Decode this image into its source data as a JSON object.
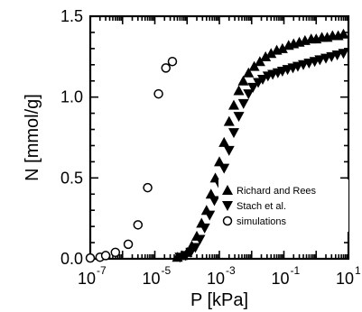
{
  "chart_data": {
    "type": "scatter",
    "xlabel": "P [kPa]",
    "ylabel": "N [mmol/g]",
    "xscale": "log",
    "xlim": [
      1e-07,
      10
    ],
    "ylim": [
      0,
      1.5
    ],
    "x_tick_labels": [
      "10",
      "10",
      "10",
      "10",
      "10"
    ],
    "x_tick_exponents": [
      "-7",
      "-5",
      "-3",
      "-1",
      "1"
    ],
    "y_tick_labels": [
      "0.0",
      "0.5",
      "1.0",
      "1.5"
    ],
    "y_ticks": [
      0,
      0.5,
      1.0,
      1.5
    ],
    "legend_position": "lower-right",
    "series": [
      {
        "name": "Richard and Rees",
        "marker": "triangle-up",
        "color": "#000000",
        "points": [
          [
            5e-05,
            0.01
          ],
          [
            7e-05,
            0.02
          ],
          [
            0.0001,
            0.04
          ],
          [
            0.00014,
            0.08
          ],
          [
            0.0002,
            0.14
          ],
          [
            0.00028,
            0.22
          ],
          [
            0.0004,
            0.3
          ],
          [
            0.00055,
            0.4
          ],
          [
            0.00075,
            0.5
          ],
          [
            0.001,
            0.6
          ],
          [
            0.0014,
            0.72
          ],
          [
            0.002,
            0.85
          ],
          [
            0.0028,
            0.95
          ],
          [
            0.004,
            1.04
          ],
          [
            0.0055,
            1.1
          ],
          [
            0.008,
            1.15
          ],
          [
            0.012,
            1.19
          ],
          [
            0.018,
            1.22
          ],
          [
            0.027,
            1.25
          ],
          [
            0.04,
            1.27
          ],
          [
            0.06,
            1.29
          ],
          [
            0.09,
            1.3
          ],
          [
            0.14,
            1.32
          ],
          [
            0.2,
            1.33
          ],
          [
            0.3,
            1.34
          ],
          [
            0.45,
            1.35
          ],
          [
            0.7,
            1.36
          ],
          [
            1.0,
            1.36
          ],
          [
            1.5,
            1.37
          ],
          [
            2.2,
            1.37
          ],
          [
            3.2,
            1.38
          ],
          [
            4.8,
            1.38
          ],
          [
            7.0,
            1.39
          ]
        ]
      },
      {
        "name": "Stach et al.",
        "marker": "triangle-down",
        "color": "#000000",
        "points": [
          [
            6e-05,
            0.01
          ],
          [
            9e-05,
            0.02
          ],
          [
            0.00013,
            0.04
          ],
          [
            0.00018,
            0.07
          ],
          [
            0.00025,
            0.12
          ],
          [
            0.00035,
            0.19
          ],
          [
            0.0005,
            0.27
          ],
          [
            0.0007,
            0.36
          ],
          [
            0.001,
            0.46
          ],
          [
            0.0014,
            0.56
          ],
          [
            0.002,
            0.67
          ],
          [
            0.0028,
            0.78
          ],
          [
            0.004,
            0.88
          ],
          [
            0.0056,
            0.96
          ],
          [
            0.008,
            1.02
          ],
          [
            0.011,
            1.06
          ],
          [
            0.016,
            1.09
          ],
          [
            0.022,
            1.11
          ],
          [
            0.032,
            1.13
          ],
          [
            0.045,
            1.14
          ],
          [
            0.065,
            1.15
          ],
          [
            0.09,
            1.16
          ],
          [
            0.13,
            1.17
          ],
          [
            0.19,
            1.18
          ],
          [
            0.27,
            1.19
          ],
          [
            0.4,
            1.2
          ],
          [
            0.6,
            1.21
          ],
          [
            0.9,
            1.22
          ],
          [
            1.3,
            1.23
          ],
          [
            2.0,
            1.24
          ],
          [
            3.0,
            1.25
          ],
          [
            4.5,
            1.26
          ],
          [
            7.0,
            1.27
          ]
        ]
      },
      {
        "name": "simulations",
        "marker": "circle-open",
        "color": "#000000",
        "points": [
          [
            1e-07,
            0.005
          ],
          [
            2e-07,
            0.01
          ],
          [
            3e-07,
            0.02
          ],
          [
            6e-07,
            0.04
          ],
          [
            1.5e-06,
            0.09
          ],
          [
            3e-06,
            0.21
          ],
          [
            6e-06,
            0.44
          ],
          [
            1.3e-05,
            1.02
          ],
          [
            2.2e-05,
            1.18
          ],
          [
            3.5e-05,
            1.22
          ]
        ]
      }
    ]
  }
}
